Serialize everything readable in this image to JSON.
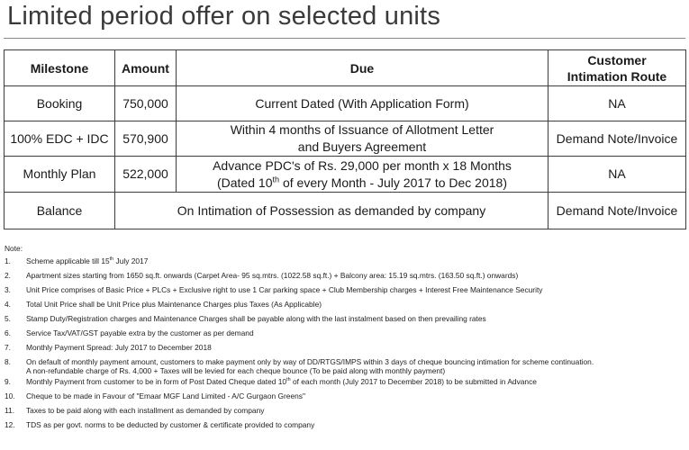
{
  "page": {
    "title": "Limited period offer on selected units"
  },
  "table": {
    "headers": {
      "milestone": "Milestone",
      "amount": "Amount",
      "due": "Due",
      "route_line1": "Customer",
      "route_line2": "Intimation Route"
    },
    "rows": [
      {
        "milestone": "Booking",
        "amount": "750,000",
        "due_line1": "Current Dated (With Application Form)",
        "route": "NA"
      },
      {
        "milestone": "100% EDC + IDC",
        "amount": "570,900",
        "due_line1": "Within 4 months of Issuance of Allotment Letter",
        "due_line2": "and Buyers Agreement",
        "route": "Demand Note/Invoice"
      },
      {
        "milestone": "Monthly Plan",
        "amount": "522,000",
        "due_line1": "Advance PDC's of Rs. 29,000 per month x 18 Months",
        "due_line2_pre": "(Dated 10",
        "due_line2_sup": "th",
        "due_line2_post": " of every Month - July 2017 to Dec 2018)",
        "route": "NA"
      },
      {
        "milestone": "Balance",
        "due_merged": "On Intimation of Possession as demanded by company",
        "route": "Demand Note/Invoice"
      }
    ]
  },
  "notes": {
    "label": "Note:",
    "items": [
      {
        "num": "1.",
        "pre": "Scheme applicable till 15",
        "sup": "th",
        "post": " July 2017"
      },
      {
        "num": "2.",
        "text": "Apartment sizes starting from 1650 sq.ft. onwards (Carpet Area- 95 sq.mtrs. (1022.58 sq.ft.) + Balcony area: 15.19 sq.mtrs. (163.50 sq.ft.) onwards)"
      },
      {
        "num": "3.",
        "text": "Unit Price comprises of Basic Price + PLCs + Exclusive right to use 1 Car parking space + Club Membership charges + Interest Free Maintenance Security"
      },
      {
        "num": "4.",
        "text": "Total Unit Price  shall be Unit Price plus Maintenance Charges plus Taxes (As Applicable)"
      },
      {
        "num": "5.",
        "text": "Stamp Duty/Registration charges and Maintenance Charges shall be payable along with the last instalment based on then prevailing rates"
      },
      {
        "num": "6.",
        "text": "Service Tax/VAT/GST payable extra by the customer as per demand"
      },
      {
        "num": "7.",
        "text": "Monthly Payment Spread: July 2017 to December 2018"
      },
      {
        "num": "8.",
        "line1": "On default of monthly payment amount, customers to make payment only by way of  DD/RTGS/IMPS within 3 days of cheque bouncing intimation for scheme continuation.",
        "line2": "A non-refundable charge of Rs. 4,000 + Taxes will be levied for each cheque bounce (To be paid along with monthly payment)"
      },
      {
        "num": "9.",
        "pre": "Monthly Payment from customer to be in form of Post Dated Cheque dated 10",
        "sup": "th",
        "post": " of each month (July 2017 to December 2018) to be submitted in Advance"
      },
      {
        "num": "10.",
        "text": "Cheque to be made in Favour of \"Emaar MGF Land Limited - A/C Gurgaon Greens\""
      },
      {
        "num": "11.",
        "text": "Taxes to be paid along with each installment as demanded by company"
      },
      {
        "num": "12.",
        "text": "TDS as per govt. norms to be deducted by customer & certificate provided to company"
      }
    ]
  }
}
